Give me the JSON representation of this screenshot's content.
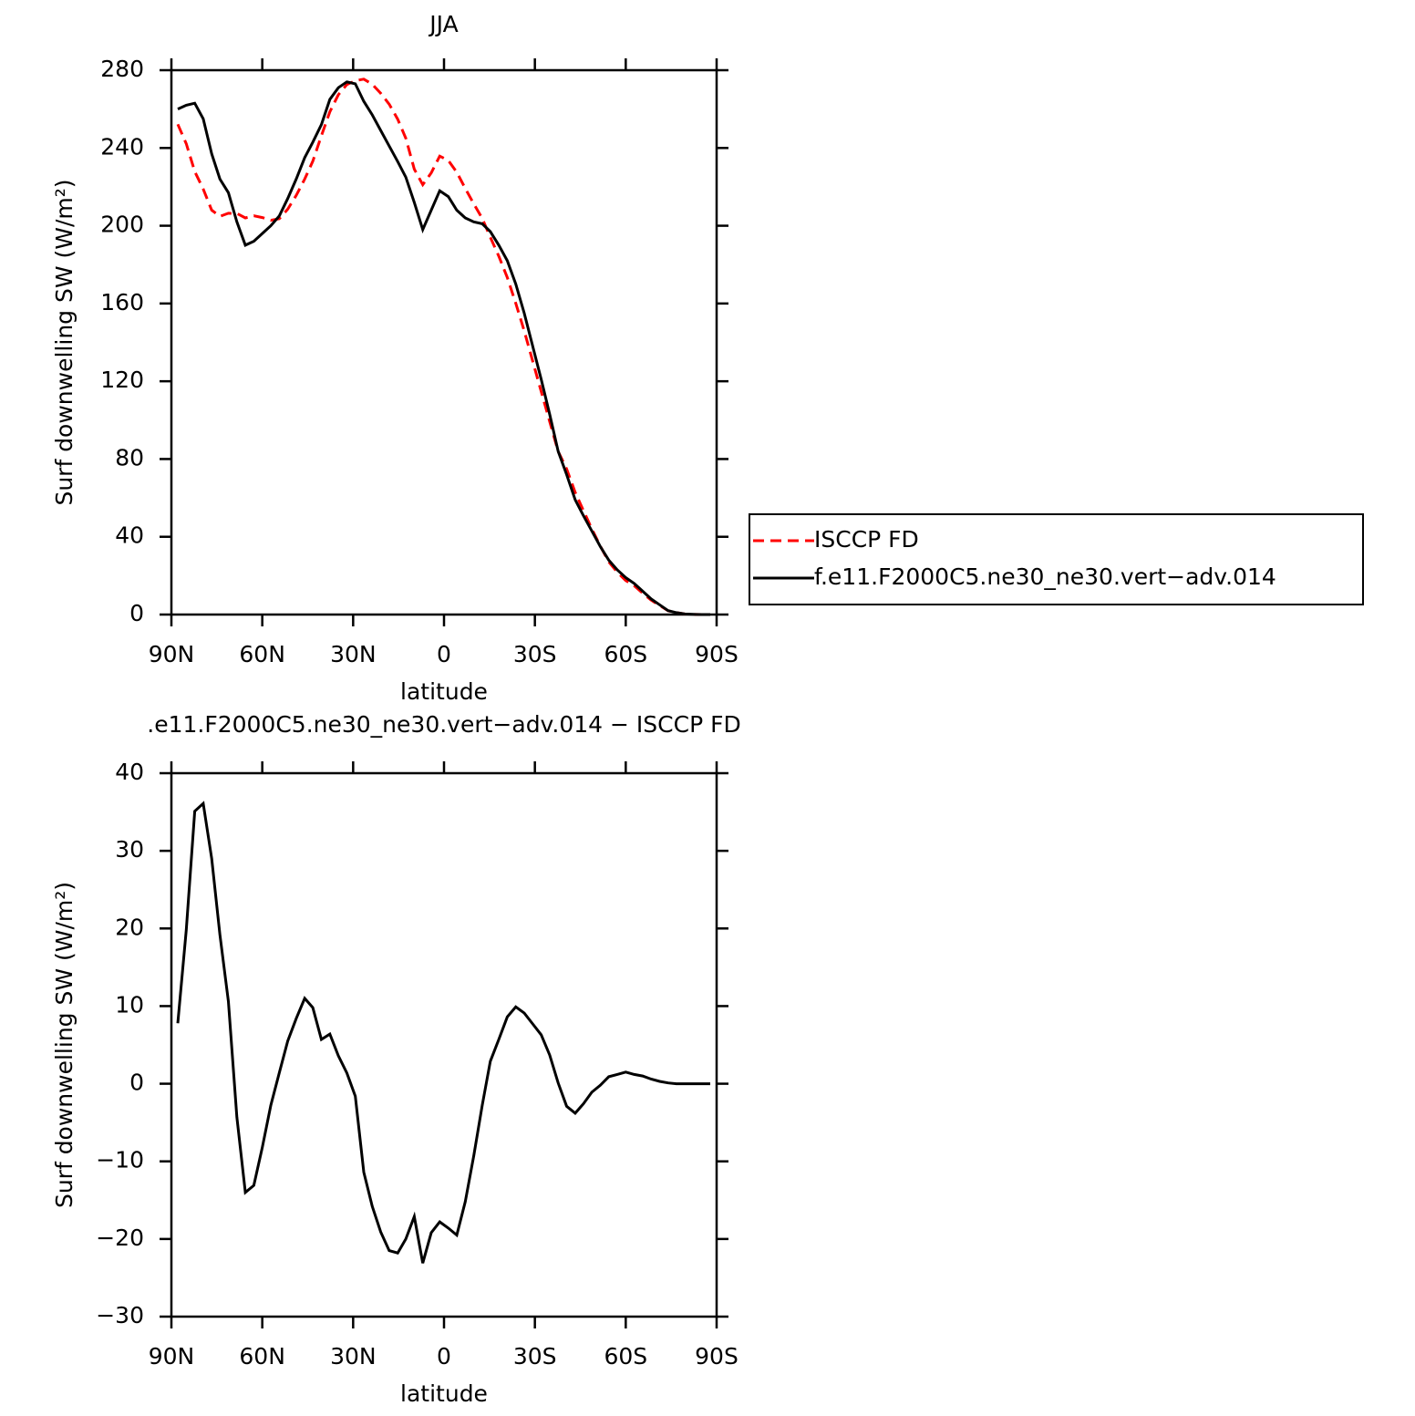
{
  "chart_data": [
    {
      "type": "line",
      "title": "JJA",
      "xlabel": "latitude",
      "ylabel": "Surf downwelling SW (W/m²)",
      "x": [
        87.9,
        85.1,
        82.3,
        79.5,
        76.7,
        74.0,
        71.2,
        68.4,
        65.6,
        62.8,
        60.0,
        57.2,
        54.4,
        51.6,
        48.8,
        46.0,
        43.3,
        40.5,
        37.7,
        34.9,
        32.1,
        29.3,
        26.5,
        23.7,
        20.9,
        18.1,
        15.3,
        12.6,
        9.8,
        7.0,
        4.2,
        1.4,
        -1.4,
        -4.2,
        -7.0,
        -9.8,
        -12.6,
        -15.3,
        -18.1,
        -20.9,
        -23.7,
        -26.5,
        -29.3,
        -32.1,
        -34.9,
        -37.7,
        -40.5,
        -43.3,
        -46.0,
        -48.8,
        -51.6,
        -54.4,
        -57.2,
        -60.0,
        -62.8,
        -65.6,
        -68.4,
        -71.2,
        -74.0,
        -76.7,
        -79.5,
        -82.3,
        -85.1,
        -87.9
      ],
      "series": [
        {
          "name": "ISCCP FD",
          "color": "#ff0000",
          "style": "dashed",
          "values": [
            252.2,
            242.2,
            227.9,
            218.9,
            208,
            204.8,
            206.4,
            206.3,
            204,
            205.1,
            204.2,
            202.8,
            203.6,
            208.5,
            215.6,
            224,
            233.2,
            246.3,
            258.6,
            267.4,
            272.6,
            274.6,
            275.4,
            272.8,
            268.1,
            262.5,
            254.8,
            245,
            229.1,
            221.1,
            227.2,
            235.8,
            233.6,
            227.5,
            219.2,
            211.3,
            203.8,
            194.1,
            184.3,
            173.4,
            160.1,
            145.9,
            130.3,
            114.7,
            99.3,
            83.9,
            74.9,
            62.8,
            53.6,
            44.1,
            35.2,
            27.1,
            21.8,
            17.5,
            14.8,
            11,
            7.4,
            4.7,
            1.9,
            1,
            0.3,
            0.1,
            0,
            0
          ]
        },
        {
          "name": "f.e11.F2000C5.ne30_ne30.vert−adv.014",
          "color": "#000000",
          "style": "solid",
          "values": [
            260,
            262,
            263,
            255,
            237,
            224,
            217,
            202,
            190,
            192,
            196,
            200,
            205,
            214,
            224,
            235,
            243,
            252,
            265,
            271,
            274,
            273,
            264,
            257,
            249,
            241,
            233,
            225,
            212,
            198,
            208,
            218,
            215,
            208,
            204,
            202,
            201,
            197,
            190,
            182,
            170,
            155,
            138,
            121,
            103,
            84,
            72,
            59,
            51,
            43,
            35,
            28,
            23,
            19,
            16,
            12,
            8,
            5,
            2,
            1,
            0.3,
            0.1,
            0,
            0
          ]
        }
      ],
      "xlim": [
        90,
        -90
      ],
      "xticks": [
        {
          "value": 90,
          "label": "90N"
        },
        {
          "value": 60,
          "label": "60N"
        },
        {
          "value": 30,
          "label": "30N"
        },
        0,
        {
          "value": -30,
          "label": "30S"
        },
        {
          "value": -60,
          "label": "60S"
        },
        {
          "value": -90,
          "label": "90S"
        }
      ],
      "ylim": [
        0,
        280
      ],
      "yticks": [
        0,
        40,
        80,
        120,
        160,
        200,
        240,
        280
      ],
      "legend": "right"
    },
    {
      "type": "line",
      "title": ".e11.F2000C5.ne30_ne30.vert−adv.014 − ISCCP FD",
      "xlabel": "latitude",
      "ylabel": "Surf downwelling SW (W/m²)",
      "x": [
        87.9,
        85.1,
        82.3,
        79.5,
        76.7,
        74.0,
        71.2,
        68.4,
        65.6,
        62.8,
        60.0,
        57.2,
        54.4,
        51.6,
        48.8,
        46.0,
        43.3,
        40.5,
        37.7,
        34.9,
        32.1,
        29.3,
        26.5,
        23.7,
        20.9,
        18.1,
        15.3,
        12.6,
        9.8,
        7.0,
        4.2,
        1.4,
        -1.4,
        -4.2,
        -7.0,
        -9.8,
        -12.6,
        -15.3,
        -18.1,
        -20.9,
        -23.7,
        -26.5,
        -29.3,
        -32.1,
        -34.9,
        -37.7,
        -40.5,
        -43.3,
        -46.0,
        -48.8,
        -51.6,
        -54.4,
        -57.2,
        -60.0,
        -62.8,
        -65.6,
        -68.4,
        -71.2,
        -74.0,
        -76.7,
        -79.5,
        -82.3,
        -85.1,
        -87.9
      ],
      "series": [
        {
          "color": "#000000",
          "style": "solid",
          "values": [
            7.8,
            19.8,
            35.1,
            36.1,
            29,
            19.2,
            10.6,
            -4.3,
            -14,
            -13.1,
            -8.2,
            -2.8,
            1.4,
            5.5,
            8.4,
            11,
            9.8,
            5.7,
            6.4,
            3.6,
            1.4,
            -1.6,
            -11.4,
            -15.8,
            -19.1,
            -21.5,
            -21.8,
            -20,
            -17.1,
            -23.1,
            -19.2,
            -17.8,
            -18.6,
            -19.5,
            -15.2,
            -9.3,
            -2.8,
            2.9,
            5.7,
            8.6,
            9.9,
            9.1,
            7.7,
            6.3,
            3.7,
            0.1,
            -2.9,
            -3.8,
            -2.6,
            -1.1,
            -0.2,
            0.9,
            1.2,
            1.5,
            1.2,
            1,
            0.6,
            0.3,
            0.1,
            0,
            0,
            0,
            0,
            0
          ]
        }
      ],
      "xlim": [
        90,
        -90
      ],
      "xticks": [
        {
          "value": 90,
          "label": "90N"
        },
        {
          "value": 60,
          "label": "60N"
        },
        {
          "value": 30,
          "label": "30N"
        },
        0,
        {
          "value": -30,
          "label": "30S"
        },
        {
          "value": -60,
          "label": "60S"
        },
        {
          "value": -90,
          "label": "90S"
        }
      ],
      "ylim": [
        -30,
        40
      ],
      "yticks": [
        {
          "value": -30,
          "label": "−30"
        },
        {
          "value": -20,
          "label": "−20"
        },
        {
          "value": -10,
          "label": "−10"
        },
        0,
        10,
        20,
        30,
        40
      ]
    }
  ]
}
